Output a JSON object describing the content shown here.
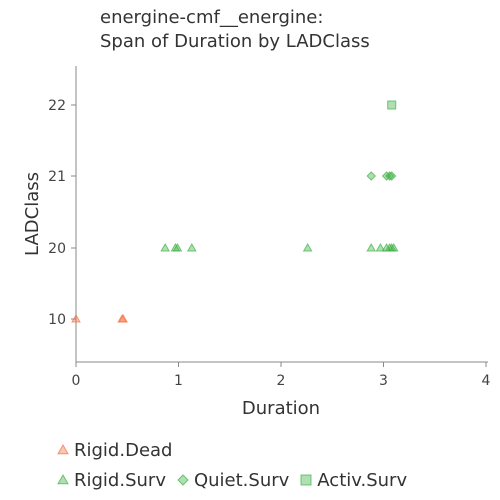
{
  "chart_data": {
    "type": "scatter",
    "title_line1": "energine-cmf__energine:",
    "title_line2": "Span of Duration by LADClass",
    "xlabel": "Duration",
    "ylabel": "LADClass",
    "x_ticks": [
      "0",
      "1",
      "2",
      "3",
      "4"
    ],
    "xlim": [
      0,
      4
    ],
    "y_categories": [
      "10",
      "20",
      "21",
      "22"
    ],
    "grid": false,
    "legend_position": "bottom",
    "series": [
      {
        "name": "Rigid.Dead",
        "marker": "triangle",
        "color": "#f4703e",
        "points": [
          {
            "x": 0.0,
            "y": "10"
          },
          {
            "x": 0.45,
            "y": "10"
          },
          {
            "x": 0.46,
            "y": "10"
          }
        ]
      },
      {
        "name": "Rigid.Surv",
        "marker": "triangle",
        "color": "#3cb043",
        "points": [
          {
            "x": 0.87,
            "y": "20"
          },
          {
            "x": 0.97,
            "y": "20"
          },
          {
            "x": 0.99,
            "y": "20"
          },
          {
            "x": 1.13,
            "y": "20"
          },
          {
            "x": 2.26,
            "y": "20"
          },
          {
            "x": 2.88,
            "y": "20"
          },
          {
            "x": 2.97,
            "y": "20"
          },
          {
            "x": 3.03,
            "y": "20"
          },
          {
            "x": 3.06,
            "y": "20"
          },
          {
            "x": 3.08,
            "y": "20"
          },
          {
            "x": 3.1,
            "y": "20"
          }
        ]
      },
      {
        "name": "Quiet.Surv",
        "marker": "diamond",
        "color": "#3cb043",
        "points": [
          {
            "x": 2.88,
            "y": "21"
          },
          {
            "x": 3.03,
            "y": "21"
          },
          {
            "x": 3.06,
            "y": "21"
          },
          {
            "x": 3.08,
            "y": "21"
          }
        ]
      },
      {
        "name": "Activ.Surv",
        "marker": "square",
        "color": "#3cb043",
        "points": [
          {
            "x": 3.08,
            "y": "22"
          }
        ]
      }
    ]
  }
}
